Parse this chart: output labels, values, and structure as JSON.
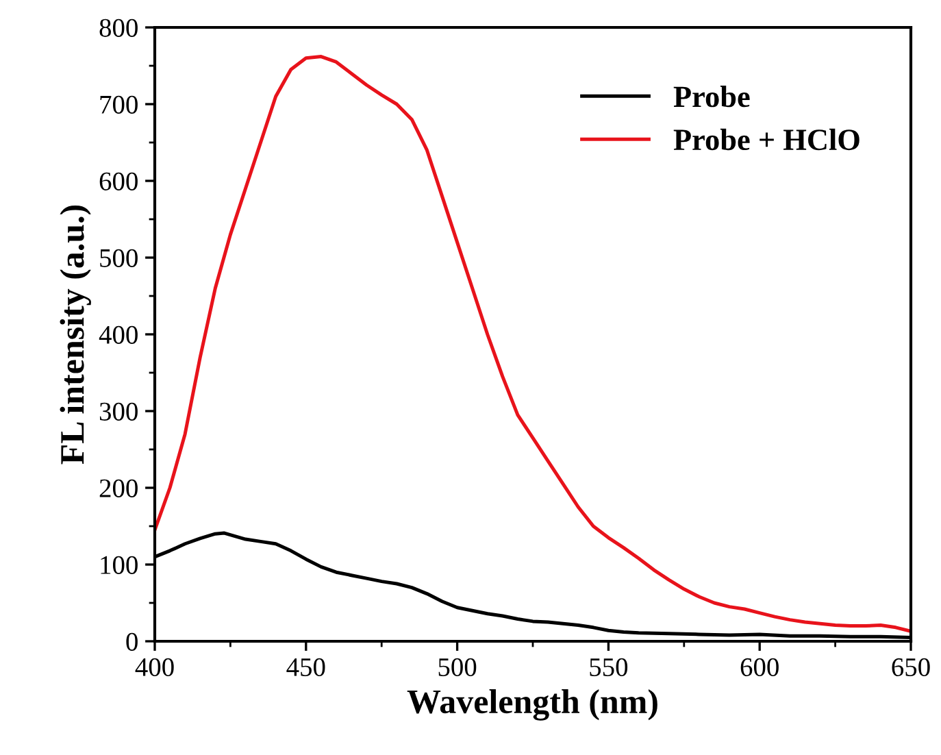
{
  "chart_data": {
    "type": "line",
    "xlabel": "Wavelength (nm)",
    "ylabel": "FL intensity (a.u.)",
    "xlim": [
      400,
      650
    ],
    "ylim": [
      0,
      800
    ],
    "xticks": [
      400,
      450,
      500,
      550,
      600,
      650
    ],
    "yticks": [
      0,
      100,
      200,
      300,
      400,
      500,
      600,
      700,
      800
    ],
    "grid": false,
    "legend": "top right",
    "marker": "none",
    "line_style": "solid",
    "series": [
      {
        "name": "Probe",
        "color": "#000000",
        "x": [
          400,
          405,
          410,
          415,
          420,
          423,
          430,
          435,
          440,
          445,
          450,
          455,
          460,
          465,
          470,
          475,
          480,
          485,
          490,
          495,
          500,
          505,
          510,
          515,
          520,
          525,
          530,
          535,
          540,
          545,
          550,
          555,
          560,
          570,
          580,
          590,
          600,
          610,
          620,
          630,
          640,
          650
        ],
        "values": [
          110,
          118,
          127,
          134,
          140,
          141,
          133,
          130,
          127,
          118,
          107,
          97,
          90,
          86,
          82,
          78,
          75,
          70,
          62,
          52,
          44,
          40,
          36,
          33,
          29,
          26,
          25,
          23,
          21,
          18,
          14,
          12,
          11,
          10,
          9,
          8,
          9,
          7,
          7,
          6,
          6,
          5
        ]
      },
      {
        "name": "Probe + HClO",
        "color": "#e8131b",
        "x": [
          400,
          405,
          410,
          415,
          420,
          425,
          430,
          435,
          440,
          445,
          450,
          455,
          460,
          465,
          470,
          475,
          480,
          485,
          490,
          495,
          500,
          505,
          510,
          515,
          520,
          525,
          530,
          535,
          540,
          545,
          550,
          555,
          560,
          565,
          570,
          575,
          580,
          585,
          590,
          595,
          600,
          605,
          610,
          615,
          620,
          625,
          630,
          635,
          640,
          645,
          650
        ],
        "values": [
          145,
          200,
          270,
          370,
          460,
          530,
          590,
          650,
          710,
          745,
          760,
          762,
          755,
          740,
          725,
          712,
          700,
          680,
          640,
          580,
          520,
          460,
          400,
          345,
          295,
          265,
          235,
          205,
          175,
          150,
          135,
          122,
          108,
          93,
          80,
          68,
          58,
          50,
          45,
          42,
          37,
          32,
          28,
          25,
          23,
          21,
          20,
          20,
          21,
          18,
          13
        ]
      }
    ]
  }
}
